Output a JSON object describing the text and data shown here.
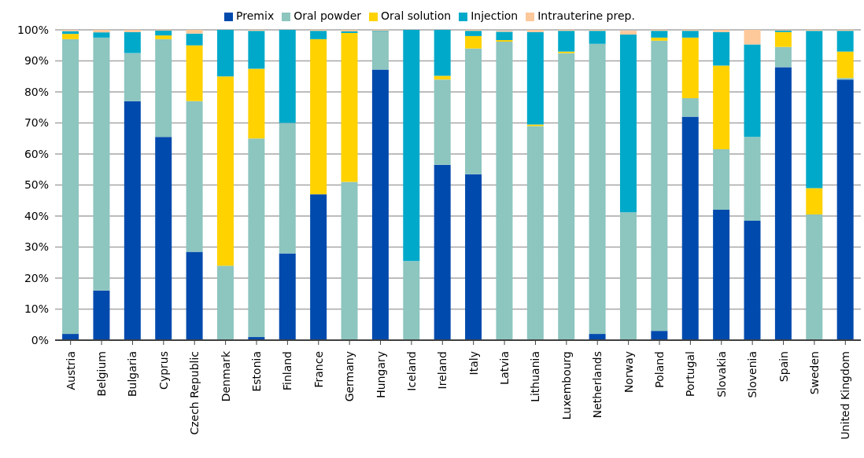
{
  "chart_data": {
    "type": "bar",
    "stacked": true,
    "categories": [
      "Austria",
      "Belgium",
      "Bulgaria",
      "Cyprus",
      "Czech Republic",
      "Denmark",
      "Estonia",
      "Finland",
      "France",
      "Germany",
      "Hungary",
      "Iceland",
      "Ireland",
      "Italy",
      "Latvia",
      "Lithuania",
      "Luxembourg",
      "Netherlands",
      "Norway",
      "Poland",
      "Portugal",
      "Slovakia",
      "Slovenia",
      "Spain",
      "Sweden",
      "United Kingdom"
    ],
    "series": [
      {
        "name": "Premix",
        "color": "#004aad",
        "values": [
          2,
          16,
          77,
          65.5,
          28.5,
          0,
          1,
          28,
          47,
          0,
          87.2,
          0,
          56.5,
          53.5,
          null,
          0,
          0,
          2,
          null,
          3,
          72,
          42,
          38.5,
          88,
          0,
          84
        ]
      },
      {
        "name": "Oral powder",
        "color": "#8dc5bf",
        "values": [
          95,
          81.5,
          15.5,
          31.5,
          48.5,
          24,
          64,
          42,
          0,
          51,
          12.3,
          25.5,
          27.5,
          40.5,
          96.2,
          69,
          92.5,
          93.5,
          41.2,
          93.5,
          6,
          19.5,
          27,
          6.5,
          40.5,
          0.5
        ]
      },
      {
        "name": "Oral solution",
        "color": "#ffd200",
        "values": [
          1.7,
          0,
          0,
          1.2,
          18,
          61,
          22.5,
          0,
          50,
          48,
          0,
          0,
          1.2,
          4,
          0.5,
          0.5,
          0.5,
          0,
          0,
          1,
          19.5,
          27,
          0,
          4.8,
          8.5,
          8.5
        ]
      },
      {
        "name": "Injection",
        "color": "#00a9c9",
        "values": [
          0.9,
          1.7,
          6.8,
          1.6,
          3.8,
          15,
          12.2,
          30,
          2.7,
          0.5,
          0.2,
          74.5,
          14.8,
          1.7,
          2.7,
          29.8,
          6.7,
          4.2,
          57.3,
          2.2,
          2.2,
          10.8,
          29.8,
          0.5,
          50.7,
          6.7
        ]
      },
      {
        "name": "Intrauterine prep.",
        "color": "#fdc89a",
        "values": [
          0.4,
          0.8,
          0.7,
          0.2,
          1.2,
          0,
          0.3,
          0,
          0.3,
          0.5,
          0.3,
          0,
          0,
          0.3,
          0.3,
          0.7,
          0.3,
          0.3,
          1.2,
          0.3,
          0.3,
          0.7,
          4.7,
          0.2,
          0.3,
          0.3
        ]
      }
    ],
    "ylim": [
      0,
      100
    ],
    "yticks": [
      {
        "value": 0,
        "label": "0%"
      },
      {
        "value": 10,
        "label": "10%"
      },
      {
        "value": 20,
        "label": "20%"
      },
      {
        "value": 30,
        "label": "30%"
      },
      {
        "value": 40,
        "label": "40%"
      },
      {
        "value": 50,
        "label": "50%"
      },
      {
        "value": 60,
        "label": "60%"
      },
      {
        "value": 70,
        "label": "70%"
      },
      {
        "value": 80,
        "label": "80%"
      },
      {
        "value": 90,
        "label": "90%"
      },
      {
        "value": 100,
        "label": "100%"
      }
    ],
    "grid": "y",
    "legend": "top"
  }
}
